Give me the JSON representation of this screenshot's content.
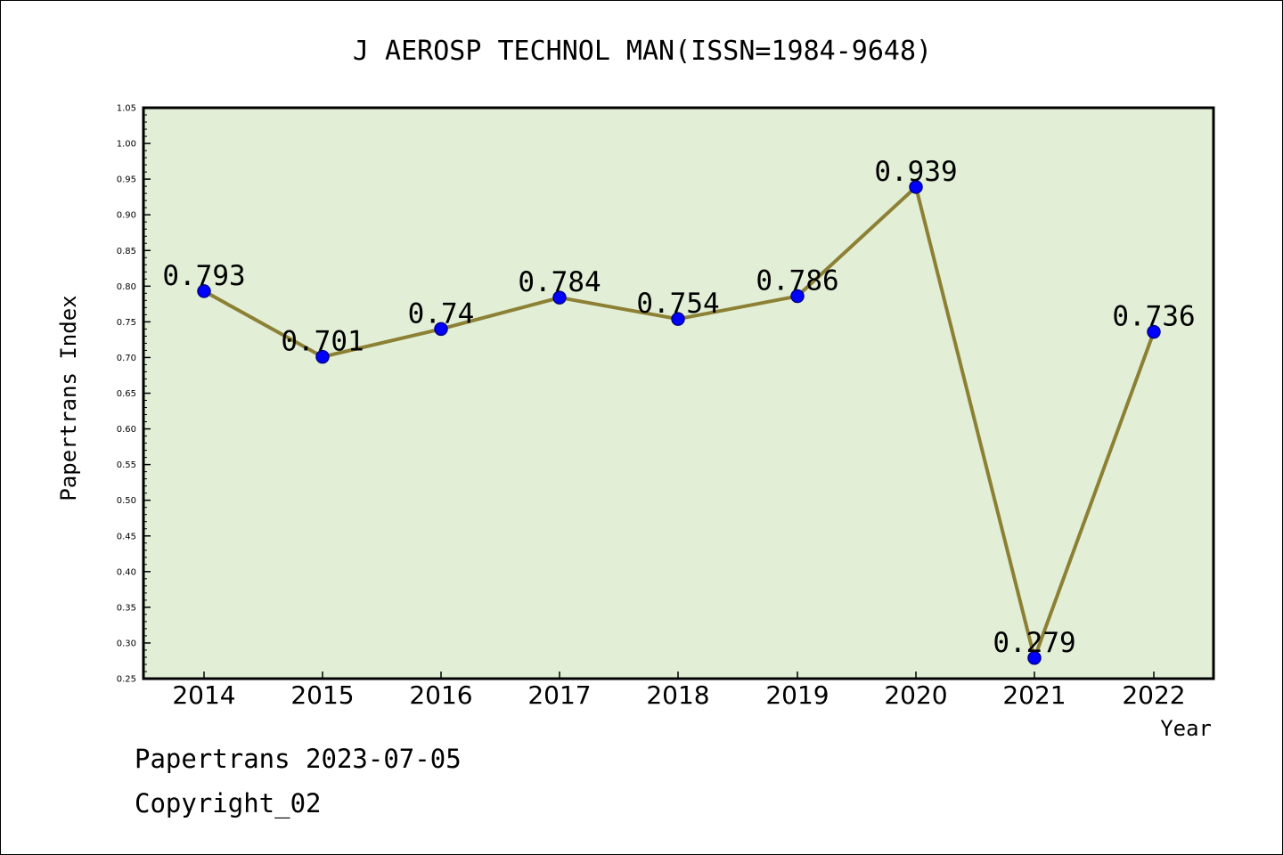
{
  "chart_data": {
    "type": "line",
    "title": "J AEROSP TECHNOL MAN(ISSN=1984-9648)",
    "xlabel": "Year",
    "ylabel": "Papertrans Index",
    "categories": [
      "2014",
      "2015",
      "2016",
      "2017",
      "2018",
      "2019",
      "2020",
      "2021",
      "2022"
    ],
    "series": [
      {
        "values": [
          0.793,
          0.701,
          0.74,
          0.784,
          0.754,
          0.786,
          0.939,
          0.279,
          0.736
        ],
        "labels": [
          "0.793",
          "0.701",
          "0.74",
          "0.784",
          "0.754",
          "0.786",
          "0.939",
          "0.279",
          "0.736"
        ]
      }
    ],
    "ylim": [
      0.25,
      1.05
    ],
    "yticks": [
      "0.25",
      "0.30",
      "0.35",
      "0.40",
      "0.45",
      "0.50",
      "0.55",
      "0.60",
      "0.65",
      "0.70",
      "0.75",
      "0.80",
      "0.85",
      "0.90",
      "0.95",
      "1.00",
      "1.05"
    ],
    "grid": false,
    "legend": "none"
  },
  "footer": {
    "line1": "Papertrans 2023-07-05",
    "line2": "Copyright_02"
  },
  "colors": {
    "plot_background": "#e2efd6",
    "line": "#8c8034",
    "marker": "#0000ff",
    "marker_edge": "#00008b"
  }
}
